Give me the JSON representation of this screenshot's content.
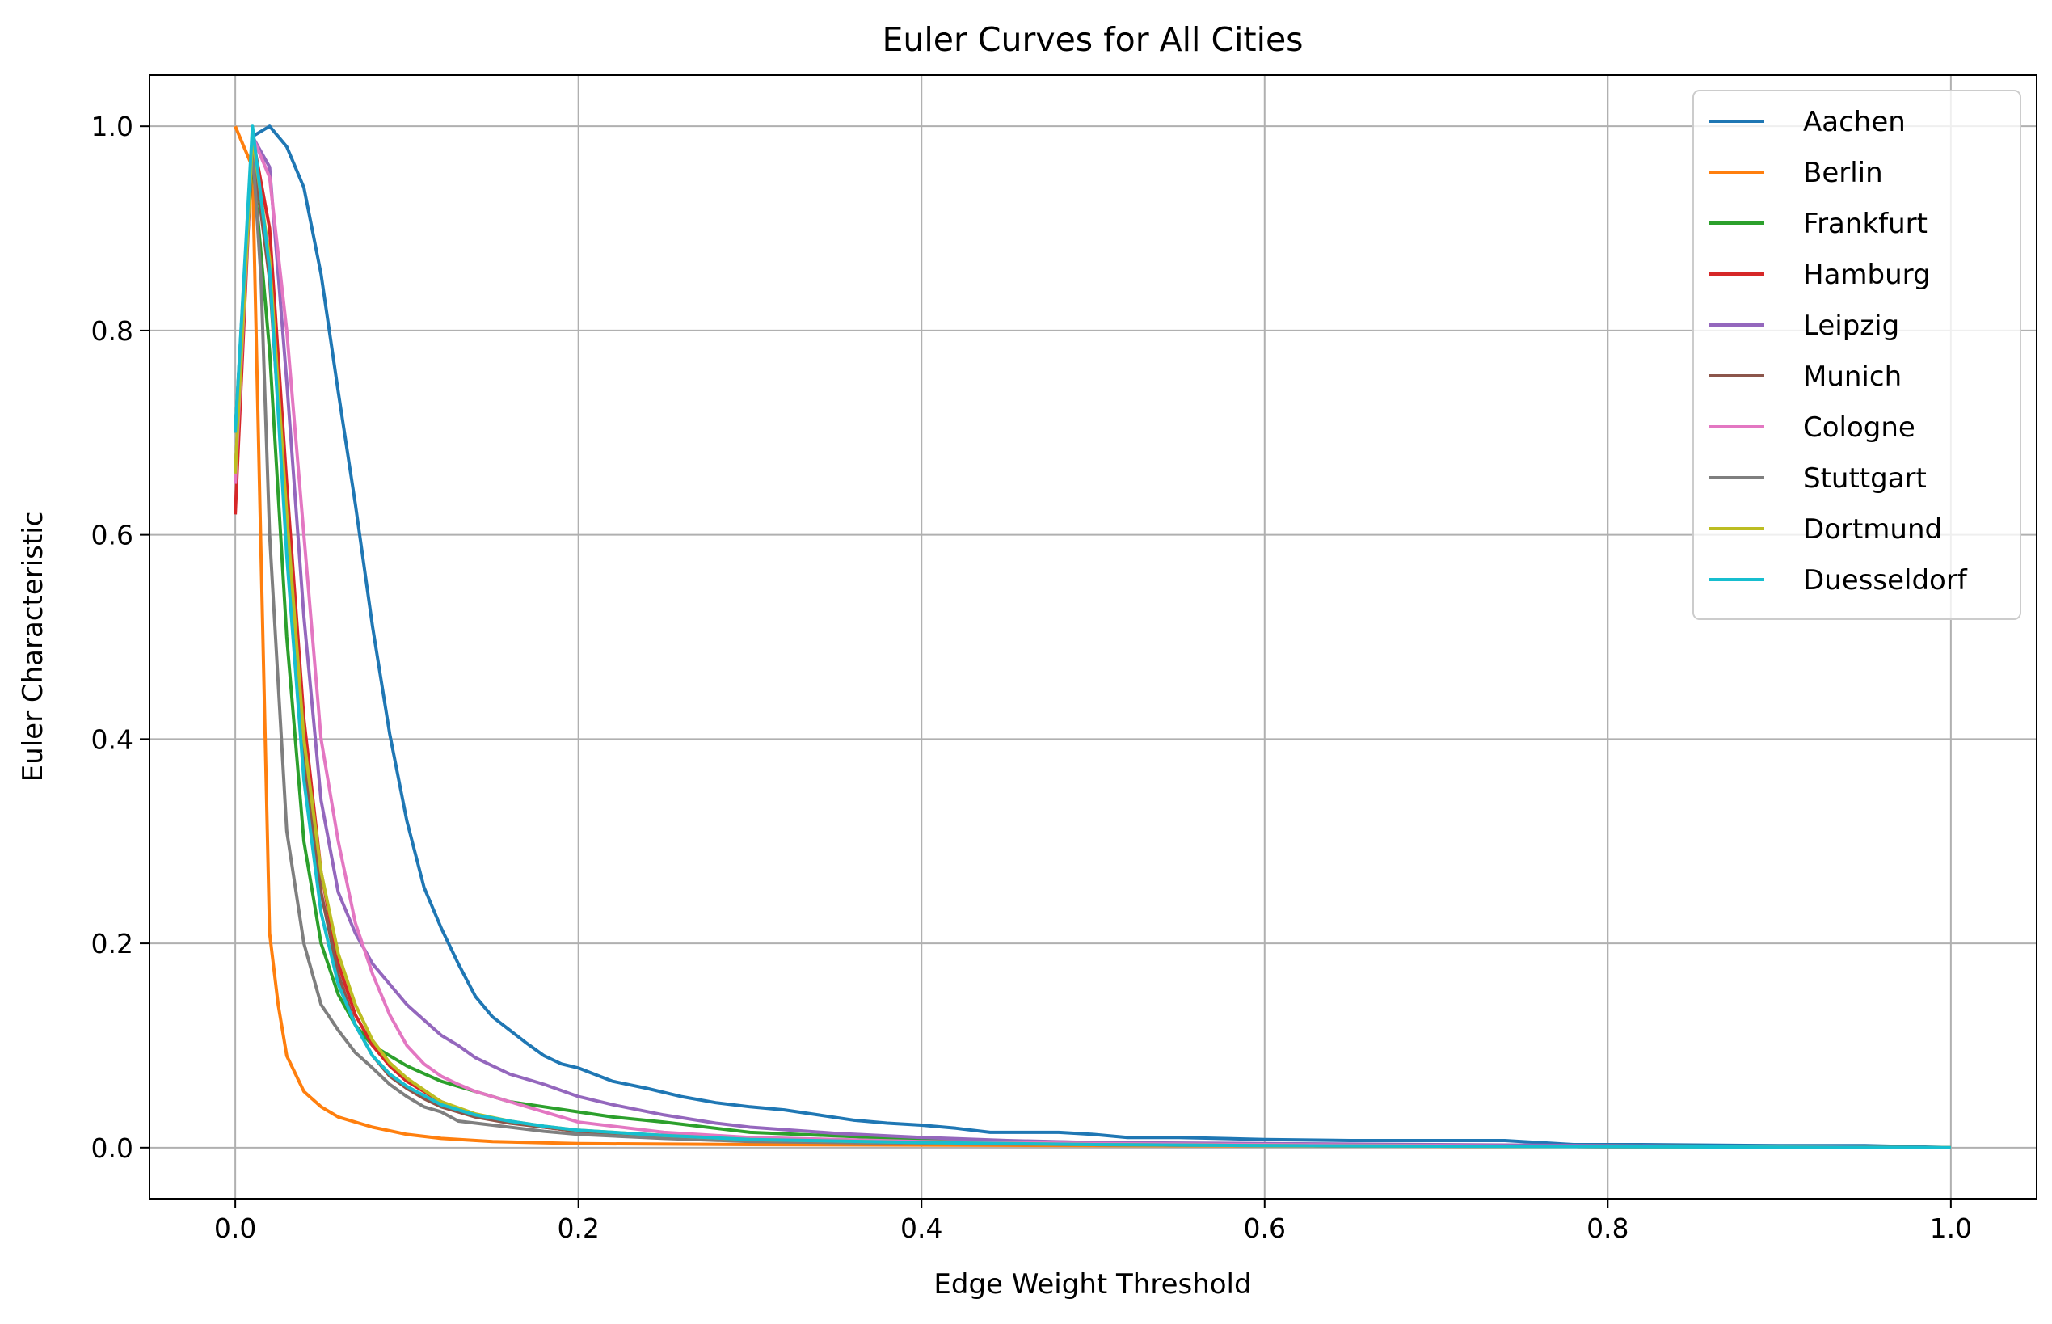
{
  "chart_data": {
    "type": "line",
    "title": "Euler Curves for All Cities",
    "xlabel": "Edge Weight Threshold",
    "ylabel": "Euler Characteristic",
    "xlim": [
      -0.05,
      1.05
    ],
    "ylim": [
      -0.05,
      1.05
    ],
    "xticks": [
      "0.0",
      "0.2",
      "0.4",
      "0.6",
      "0.8",
      "1.0"
    ],
    "yticks": [
      "0.0",
      "0.2",
      "0.4",
      "0.6",
      "0.8",
      "1.0"
    ],
    "grid": true,
    "legend_position": "top-right",
    "series": [
      {
        "name": "Aachen",
        "color": "#1f77b4",
        "x": [
          0,
          0.01,
          0.02,
          0.03,
          0.04,
          0.05,
          0.06,
          0.07,
          0.08,
          0.09,
          0.1,
          0.11,
          0.12,
          0.13,
          0.14,
          0.15,
          0.16,
          0.17,
          0.18,
          0.19,
          0.2,
          0.22,
          0.24,
          0.26,
          0.28,
          0.3,
          0.32,
          0.34,
          0.36,
          0.38,
          0.4,
          0.42,
          0.44,
          0.48,
          0.5,
          0.52,
          0.55,
          0.6,
          0.65,
          0.7,
          0.74,
          0.78,
          0.82,
          0.9,
          0.95,
          1.0
        ],
        "y": [
          0.7,
          0.99,
          1.0,
          0.98,
          0.94,
          0.855,
          0.74,
          0.63,
          0.51,
          0.405,
          0.32,
          0.255,
          0.215,
          0.18,
          0.148,
          0.128,
          0.115,
          0.102,
          0.09,
          0.082,
          0.078,
          0.065,
          0.058,
          0.05,
          0.044,
          0.04,
          0.037,
          0.032,
          0.027,
          0.024,
          0.022,
          0.019,
          0.015,
          0.015,
          0.013,
          0.01,
          0.01,
          0.008,
          0.007,
          0.007,
          0.007,
          0.003,
          0.003,
          0.002,
          0.002,
          0.0
        ]
      },
      {
        "name": "Berlin",
        "color": "#ff7f0e",
        "x": [
          0,
          0.01,
          0.015,
          0.02,
          0.025,
          0.03,
          0.04,
          0.05,
          0.06,
          0.08,
          0.1,
          0.12,
          0.15,
          0.2,
          0.3,
          0.5,
          0.8,
          1.0
        ],
        "y": [
          1.0,
          0.96,
          0.58,
          0.21,
          0.14,
          0.09,
          0.055,
          0.04,
          0.03,
          0.02,
          0.013,
          0.009,
          0.006,
          0.004,
          0.003,
          0.002,
          0.001,
          0.0
        ]
      },
      {
        "name": "Frankfurt",
        "color": "#2ca02c",
        "x": [
          0,
          0.01,
          0.02,
          0.03,
          0.04,
          0.05,
          0.06,
          0.07,
          0.08,
          0.09,
          0.1,
          0.12,
          0.14,
          0.16,
          0.18,
          0.2,
          0.22,
          0.25,
          0.3,
          0.4,
          0.5,
          0.6,
          0.8,
          1.0
        ],
        "y": [
          0.7,
          0.97,
          0.78,
          0.5,
          0.3,
          0.2,
          0.15,
          0.12,
          0.1,
          0.09,
          0.08,
          0.065,
          0.055,
          0.045,
          0.04,
          0.035,
          0.03,
          0.025,
          0.015,
          0.008,
          0.005,
          0.003,
          0.002,
          0.0
        ]
      },
      {
        "name": "Hamburg",
        "color": "#d62728",
        "x": [
          0,
          0.01,
          0.02,
          0.03,
          0.04,
          0.05,
          0.06,
          0.07,
          0.08,
          0.09,
          0.1,
          0.12,
          0.14,
          0.16,
          0.18,
          0.2,
          0.25,
          0.3,
          0.4,
          0.5,
          0.6,
          0.8,
          1.0
        ],
        "y": [
          0.62,
          0.99,
          0.9,
          0.65,
          0.42,
          0.27,
          0.18,
          0.13,
          0.1,
          0.08,
          0.065,
          0.045,
          0.032,
          0.025,
          0.02,
          0.016,
          0.012,
          0.008,
          0.005,
          0.003,
          0.002,
          0.001,
          0.0
        ]
      },
      {
        "name": "Leipzig",
        "color": "#9467bd",
        "x": [
          0,
          0.01,
          0.02,
          0.03,
          0.04,
          0.05,
          0.06,
          0.07,
          0.08,
          0.09,
          0.1,
          0.11,
          0.12,
          0.13,
          0.14,
          0.15,
          0.16,
          0.18,
          0.2,
          0.22,
          0.25,
          0.28,
          0.3,
          0.35,
          0.4,
          0.45,
          0.5,
          0.6,
          0.7,
          0.8,
          0.9,
          1.0
        ],
        "y": [
          0.7,
          0.99,
          0.96,
          0.75,
          0.52,
          0.34,
          0.25,
          0.21,
          0.18,
          0.16,
          0.14,
          0.125,
          0.11,
          0.1,
          0.088,
          0.08,
          0.072,
          0.062,
          0.05,
          0.042,
          0.032,
          0.024,
          0.02,
          0.014,
          0.01,
          0.007,
          0.005,
          0.004,
          0.003,
          0.002,
          0.001,
          0.0
        ]
      },
      {
        "name": "Munich",
        "color": "#8c564b",
        "x": [
          0,
          0.01,
          0.02,
          0.03,
          0.04,
          0.05,
          0.06,
          0.07,
          0.08,
          0.09,
          0.1,
          0.11,
          0.12,
          0.14,
          0.16,
          0.18,
          0.2,
          0.25,
          0.3,
          0.4,
          0.5,
          0.6,
          0.8,
          1.0
        ],
        "y": [
          0.66,
          0.98,
          0.85,
          0.6,
          0.38,
          0.25,
          0.17,
          0.12,
          0.09,
          0.07,
          0.058,
          0.048,
          0.04,
          0.03,
          0.024,
          0.02,
          0.016,
          0.011,
          0.008,
          0.005,
          0.003,
          0.002,
          0.001,
          0.0
        ]
      },
      {
        "name": "Cologne",
        "color": "#e377c2",
        "x": [
          0,
          0.01,
          0.02,
          0.03,
          0.04,
          0.05,
          0.06,
          0.07,
          0.08,
          0.09,
          0.1,
          0.11,
          0.12,
          0.13,
          0.14,
          0.16,
          0.18,
          0.2,
          0.25,
          0.3,
          0.4,
          0.5,
          0.6,
          0.8,
          1.0
        ],
        "y": [
          0.65,
          0.99,
          0.95,
          0.8,
          0.6,
          0.4,
          0.3,
          0.22,
          0.17,
          0.13,
          0.1,
          0.082,
          0.07,
          0.062,
          0.055,
          0.045,
          0.035,
          0.025,
          0.015,
          0.01,
          0.006,
          0.004,
          0.003,
          0.001,
          0.0
        ]
      },
      {
        "name": "Stuttgart",
        "color": "#7f7f7f",
        "x": [
          0,
          0.01,
          0.015,
          0.02,
          0.03,
          0.04,
          0.05,
          0.06,
          0.07,
          0.08,
          0.09,
          0.1,
          0.11,
          0.12,
          0.13,
          0.15,
          0.18,
          0.2,
          0.25,
          0.3,
          0.4,
          0.5,
          0.6,
          0.8,
          1.0
        ],
        "y": [
          0.7,
          0.98,
          0.85,
          0.6,
          0.31,
          0.2,
          0.14,
          0.115,
          0.093,
          0.078,
          0.062,
          0.05,
          0.04,
          0.035,
          0.026,
          0.022,
          0.016,
          0.013,
          0.009,
          0.006,
          0.004,
          0.003,
          0.002,
          0.001,
          0.0
        ]
      },
      {
        "name": "Dortmund",
        "color": "#bcbd22",
        "x": [
          0,
          0.01,
          0.02,
          0.03,
          0.04,
          0.05,
          0.06,
          0.07,
          0.08,
          0.09,
          0.1,
          0.12,
          0.14,
          0.16,
          0.18,
          0.2,
          0.25,
          0.3,
          0.4,
          0.5,
          0.6,
          0.8,
          1.0
        ],
        "y": [
          0.66,
          0.99,
          0.87,
          0.62,
          0.4,
          0.27,
          0.19,
          0.14,
          0.105,
          0.083,
          0.068,
          0.045,
          0.033,
          0.026,
          0.021,
          0.017,
          0.012,
          0.008,
          0.005,
          0.003,
          0.002,
          0.001,
          0.0
        ]
      },
      {
        "name": "Duesseldorf",
        "color": "#17becf",
        "x": [
          0,
          0.01,
          0.02,
          0.03,
          0.04,
          0.05,
          0.06,
          0.07,
          0.08,
          0.09,
          0.1,
          0.12,
          0.14,
          0.16,
          0.18,
          0.2,
          0.25,
          0.3,
          0.4,
          0.5,
          0.6,
          0.8,
          1.0
        ],
        "y": [
          0.7,
          1.0,
          0.86,
          0.58,
          0.36,
          0.23,
          0.16,
          0.12,
          0.09,
          0.072,
          0.06,
          0.042,
          0.032,
          0.026,
          0.021,
          0.017,
          0.012,
          0.008,
          0.005,
          0.003,
          0.002,
          0.001,
          0.0
        ]
      }
    ]
  }
}
